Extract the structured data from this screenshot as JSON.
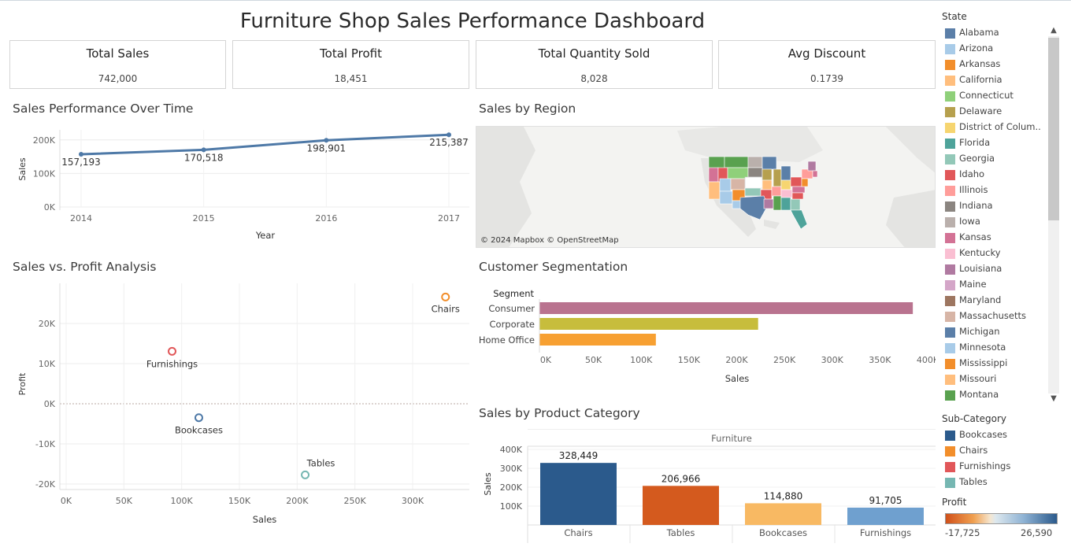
{
  "title": "Furniture Shop Sales Performance Dashboard",
  "kpis": [
    {
      "label": "Total Sales",
      "value": "742,000"
    },
    {
      "label": "Total Profit",
      "value": "18,451"
    },
    {
      "label": "Total Quantity Sold",
      "value": "8,028"
    },
    {
      "label": "Avg Discount",
      "value": "0.1739"
    }
  ],
  "sections": {
    "time": "Sales Performance Over Time",
    "region": "Sales by Region",
    "scatter": "Sales vs. Profit Analysis",
    "segment": "Customer Segmentation",
    "category": "Sales by Product Category"
  },
  "map": {
    "attribution": "© 2024 Mapbox © OpenStreetMap"
  },
  "chart_data": [
    {
      "type": "line",
      "title": "Sales Performance Over Time",
      "xlabel": "Year",
      "ylabel": "Sales",
      "x": [
        "2014",
        "2015",
        "2016",
        "2017"
      ],
      "series": [
        {
          "values": [
            157193,
            170518,
            198901,
            215387
          ],
          "color": "#4e79a7"
        }
      ],
      "data_labels": [
        "157,193",
        "170,518",
        "198,901",
        "215,387"
      ],
      "y_ticks": [
        "0K",
        "100K",
        "200K"
      ],
      "ylim": [
        0,
        230000
      ],
      "grid": true
    },
    {
      "type": "scatter",
      "title": "Sales vs. Profit Analysis",
      "xlabel": "Sales",
      "ylabel": "Profit",
      "points": [
        {
          "label": "Chairs",
          "x": 328449,
          "y": 26590,
          "color": "#f28e2b"
        },
        {
          "label": "Furnishings",
          "x": 91705,
          "y": 13059,
          "color": "#e15759"
        },
        {
          "label": "Bookcases",
          "x": 114880,
          "y": -3473,
          "color": "#4e79a7"
        },
        {
          "label": "Tables",
          "x": 206966,
          "y": -17725,
          "color": "#76b7b2"
        }
      ],
      "x_ticks": [
        "0K",
        "50K",
        "100K",
        "150K",
        "200K",
        "250K",
        "300K"
      ],
      "y_ticks": [
        "-20K",
        "-10K",
        "0K",
        "10K",
        "20K"
      ],
      "xlim": [
        0,
        350000
      ],
      "ylim": [
        -22000,
        30000
      ],
      "grid": true
    },
    {
      "type": "bar",
      "title": "Customer Segmentation",
      "orientation": "horizontal",
      "category_header": "Segment",
      "xlabel": "Sales",
      "categories": [
        "Consumer",
        "Corporate",
        "Home Office"
      ],
      "values": [
        391049,
        229019,
        121932
      ],
      "colors": [
        "#b9738f",
        "#c7bd3c",
        "#f7a032"
      ],
      "x_ticks": [
        "0K",
        "50K",
        "100K",
        "150K",
        "200K",
        "250K",
        "300K",
        "350K",
        "400K"
      ],
      "xlim": [
        0,
        400000
      ]
    },
    {
      "type": "bar",
      "title": "Sales by Product Category",
      "ylabel": "Sales",
      "header": "Furniture",
      "categories": [
        "Chairs",
        "Tables",
        "Bookcases",
        "Furnishings"
      ],
      "values": [
        328449,
        206966,
        114880,
        91705
      ],
      "data_labels": [
        "328,449",
        "206,966",
        "114,880",
        "91,705"
      ],
      "colors": [
        "#2b5a8c",
        "#d45a1e",
        "#f8b963",
        "#6fa0cf"
      ],
      "y_ticks": [
        "100K",
        "200K",
        "300K",
        "400K"
      ],
      "ylim": [
        0,
        420000
      ]
    }
  ],
  "legend_state": {
    "title": "State",
    "items": [
      {
        "label": "Alabama",
        "color": "#5b7fa8"
      },
      {
        "label": "Arizona",
        "color": "#a8cbe8"
      },
      {
        "label": "Arkansas",
        "color": "#f28e2b"
      },
      {
        "label": "California",
        "color": "#ffbe7d"
      },
      {
        "label": "Connecticut",
        "color": "#8fd07a"
      },
      {
        "label": "Delaware",
        "color": "#b6a04e"
      },
      {
        "label": "District of Colum..",
        "color": "#f6d570"
      },
      {
        "label": "Florida",
        "color": "#4ea39a"
      },
      {
        "label": "Georgia",
        "color": "#93c8b8"
      },
      {
        "label": "Idaho",
        "color": "#e15759"
      },
      {
        "label": "Illinois",
        "color": "#ff9d9a"
      },
      {
        "label": "Indiana",
        "color": "#8b8580"
      },
      {
        "label": "Iowa",
        "color": "#bab0ac"
      },
      {
        "label": "Kansas",
        "color": "#d37295"
      },
      {
        "label": "Kentucky",
        "color": "#fabfd2"
      },
      {
        "label": "Louisiana",
        "color": "#b07aa1"
      },
      {
        "label": "Maine",
        "color": "#d4a6c8"
      },
      {
        "label": "Maryland",
        "color": "#9d7660"
      },
      {
        "label": "Massachusetts",
        "color": "#d7b5a6"
      },
      {
        "label": "Michigan",
        "color": "#5b7fa8"
      },
      {
        "label": "Minnesota",
        "color": "#a8cbe8"
      },
      {
        "label": "Mississippi",
        "color": "#f28e2b"
      },
      {
        "label": "Missouri",
        "color": "#ffbe7d"
      },
      {
        "label": "Montana",
        "color": "#59a14f"
      }
    ]
  },
  "legend_subcat": {
    "title": "Sub-Category",
    "items": [
      {
        "label": "Bookcases",
        "color": "#2b5a8c"
      },
      {
        "label": "Chairs",
        "color": "#f28e2b"
      },
      {
        "label": "Furnishings",
        "color": "#e15759"
      },
      {
        "label": "Tables",
        "color": "#76b7b2"
      }
    ]
  },
  "legend_profit": {
    "title": "Profit",
    "min_label": "-17,725",
    "max_label": "26,590"
  }
}
